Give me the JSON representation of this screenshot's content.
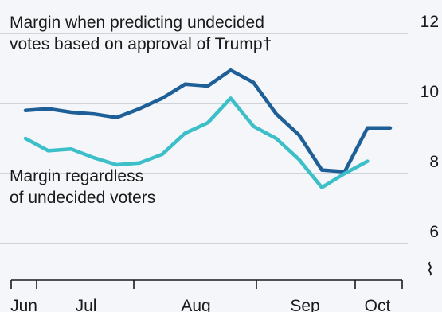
{
  "chart_data": {
    "type": "line",
    "x_ticks": [
      "Jun",
      "Jul",
      "Aug",
      "Sep",
      "Oct"
    ],
    "ylim": [
      5.25,
      12.5
    ],
    "y_ticks": [
      "12",
      "10",
      "8",
      "6"
    ],
    "y_tick_values": [
      12,
      10,
      8,
      6
    ],
    "y_axis_break_symbol": "⌇",
    "grid": true,
    "series": [
      {
        "label_lines": [
          "Margin when predicting undecided",
          "votes based on approval of Trump†"
        ],
        "color": "#1d5f96",
        "x": [
          0,
          1,
          2,
          3,
          4,
          5,
          6,
          7,
          8,
          9,
          10,
          11,
          12,
          13,
          14,
          15,
          16
        ],
        "values": [
          9.8,
          9.85,
          9.75,
          9.7,
          9.6,
          9.85,
          10.15,
          10.55,
          10.5,
          10.95,
          10.6,
          9.7,
          9.1,
          8.1,
          8.05,
          9.3,
          9.3
        ]
      },
      {
        "label_lines": [
          "Margin regardless",
          "of undecided voters"
        ],
        "color": "#3dbfc9",
        "x": [
          0,
          1,
          2,
          3,
          4,
          5,
          6,
          7,
          8,
          9,
          10,
          11,
          12,
          13,
          14,
          15
        ],
        "values": [
          9.0,
          8.65,
          8.7,
          8.45,
          8.25,
          8.3,
          8.55,
          9.15,
          9.45,
          10.15,
          9.35,
          9.0,
          8.4,
          7.6,
          8.0,
          8.35
        ]
      }
    ]
  }
}
